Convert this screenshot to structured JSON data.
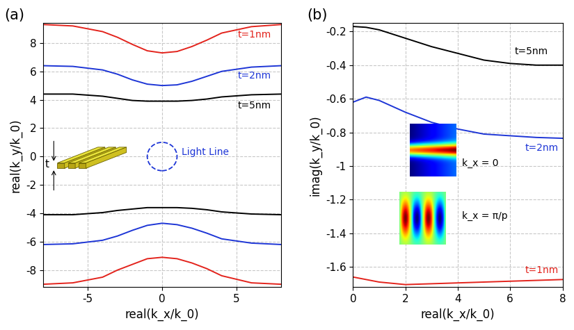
{
  "chart_data": [
    {
      "type": "line",
      "title": "(a)",
      "x_label": "real(k_x/k_0)",
      "y_label": "real(k_y/k_0)",
      "x": [
        -8,
        -6,
        -4,
        -3,
        -2,
        -1,
        0,
        1,
        2,
        3,
        4,
        6,
        8
      ],
      "series": [
        {
          "name": "t=1nm",
          "color": "#e3231c",
          "values": [
            9.3,
            9.2,
            8.8,
            8.4,
            7.9,
            7.45,
            7.3,
            7.4,
            7.75,
            8.2,
            8.7,
            9.15,
            9.3
          ]
        },
        {
          "color": "#e3231c",
          "values": [
            -9.0,
            -8.9,
            -8.5,
            -8.0,
            -7.6,
            -7.2,
            -7.1,
            -7.2,
            -7.5,
            -7.9,
            -8.4,
            -8.9,
            -9.0
          ]
        },
        {
          "name": "t=2nm",
          "color": "#1d35d6",
          "values": [
            6.4,
            6.35,
            6.1,
            5.8,
            5.4,
            5.1,
            5.0,
            5.05,
            5.3,
            5.65,
            6.0,
            6.3,
            6.4
          ]
        },
        {
          "color": "#1d35d6",
          "values": [
            -6.2,
            -6.15,
            -5.9,
            -5.6,
            -5.2,
            -4.85,
            -4.7,
            -4.8,
            -5.05,
            -5.4,
            -5.8,
            -6.1,
            -6.2
          ]
        },
        {
          "name": "t=5nm",
          "color": "#000000",
          "values": [
            4.4,
            4.4,
            4.25,
            4.1,
            3.95,
            3.9,
            3.9,
            3.9,
            3.95,
            4.05,
            4.2,
            4.35,
            4.4
          ]
        },
        {
          "color": "#000000",
          "values": [
            -4.1,
            -4.1,
            -3.95,
            -3.8,
            -3.7,
            -3.6,
            -3.6,
            -3.6,
            -3.65,
            -3.75,
            -3.9,
            -4.05,
            -4.1
          ]
        }
      ],
      "light_line": {
        "label": "Light Line",
        "radius": 1,
        "color": "#1d35d6"
      },
      "annotations": [
        "t"
      ],
      "xlim": [
        -8,
        8
      ],
      "xticks": [
        -5,
        0,
        5
      ],
      "ylim": [
        -9.2,
        9.4
      ],
      "yticks": [
        -8,
        -6,
        -4,
        -2,
        0,
        2,
        4,
        6,
        8
      ],
      "grid": true
    },
    {
      "type": "line",
      "title": "(b)",
      "x_label": "real(k_x/k_0)",
      "y_label": "imag(k_y/k_0)",
      "x": [
        0,
        0.5,
        1,
        2,
        3,
        4,
        5,
        6,
        7,
        8
      ],
      "series": [
        {
          "name": "t=5nm",
          "color": "#000000",
          "values": [
            -0.17,
            -0.175,
            -0.19,
            -0.24,
            -0.29,
            -0.33,
            -0.37,
            -0.39,
            -0.4,
            -0.4
          ]
        },
        {
          "name": "t=2nm",
          "color": "#1d35d6",
          "values": [
            -0.62,
            -0.59,
            -0.61,
            -0.68,
            -0.74,
            -0.78,
            -0.81,
            -0.82,
            -0.83,
            -0.835
          ]
        },
        {
          "name": "t=1nm",
          "color": "#e3231c",
          "values": [
            -1.66,
            -1.675,
            -1.69,
            -1.705,
            -1.7,
            -1.695,
            -1.69,
            -1.685,
            -1.68,
            -1.675
          ]
        }
      ],
      "annotations": [
        "k_x = 0",
        "k_x = π/p"
      ],
      "xlim": [
        0,
        8
      ],
      "xticks": [
        0,
        2,
        4,
        6,
        8
      ],
      "ylim": [
        -1.72,
        -0.15
      ],
      "yticks": [
        -1.6,
        -1.4,
        -1.2,
        -1,
        -0.8,
        -0.6,
        -0.4,
        -0.2
      ],
      "grid": true
    }
  ]
}
